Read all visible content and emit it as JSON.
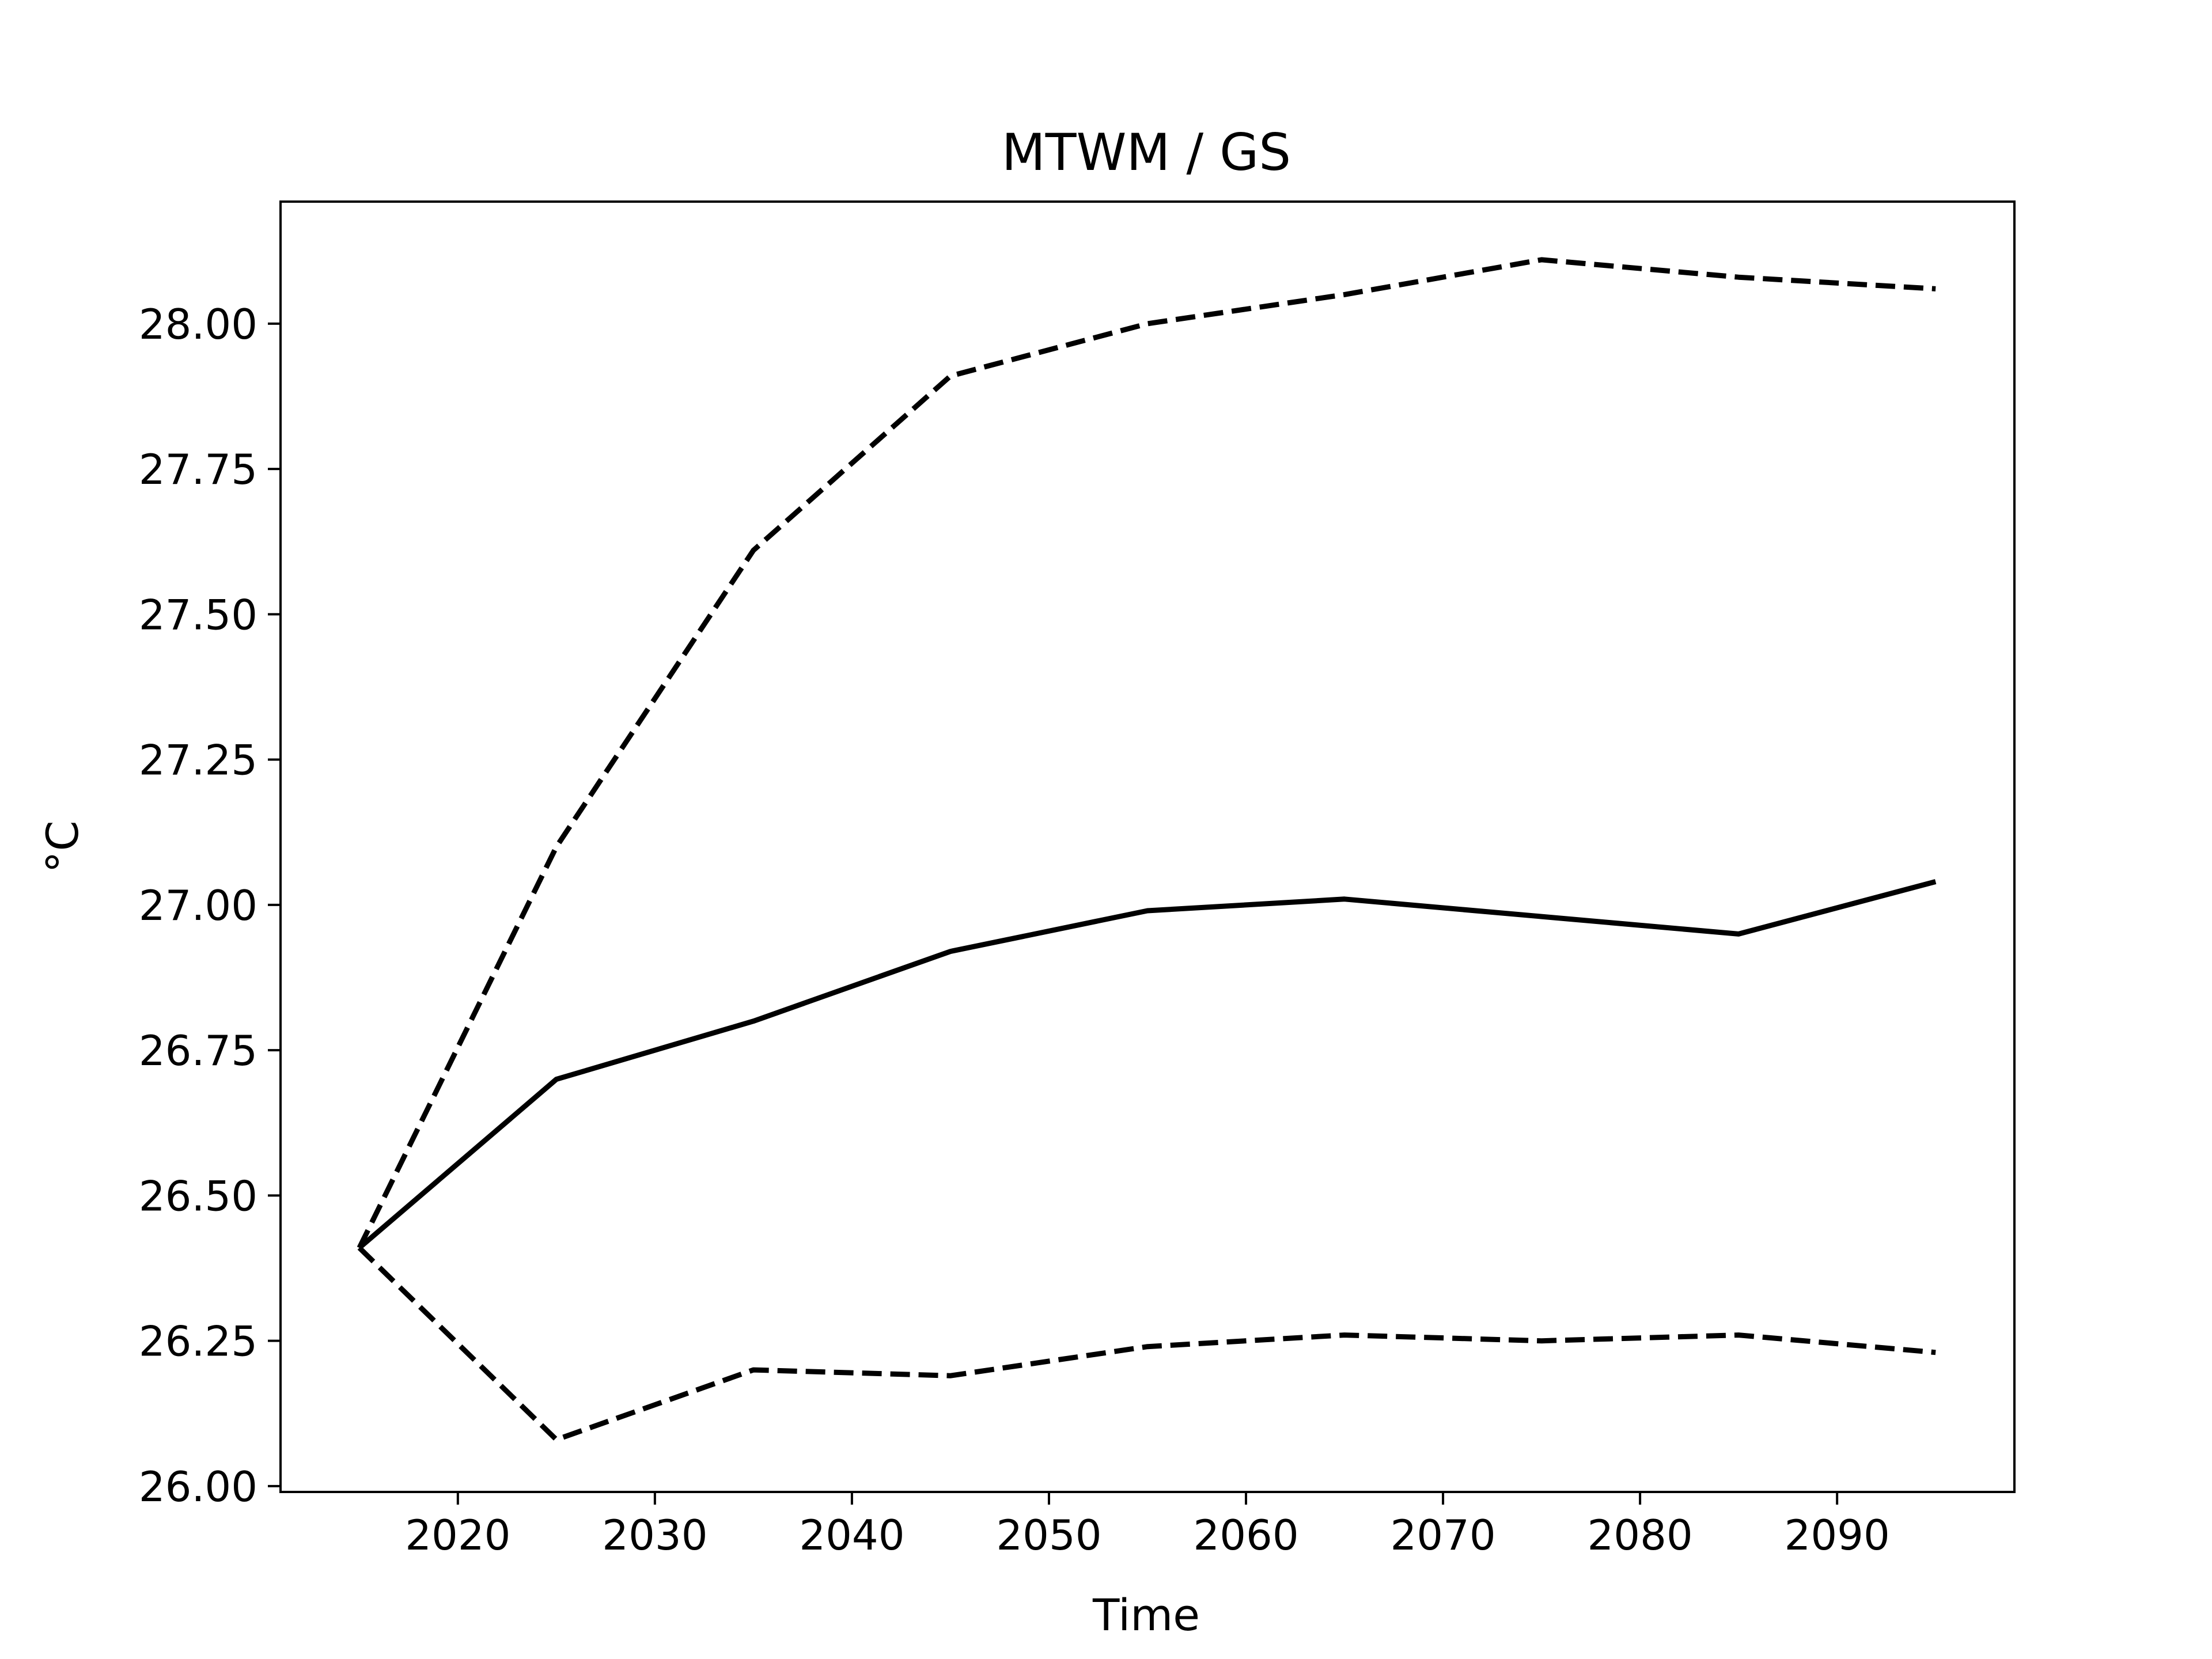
{
  "chart_data": {
    "type": "line",
    "title": "MTWM / GS",
    "xlabel": "Time",
    "ylabel": "°C",
    "xlim": [
      2011,
      2099
    ],
    "ylim": [
      25.99,
      28.21
    ],
    "xticks": [
      2020,
      2030,
      2040,
      2050,
      2060,
      2070,
      2080,
      2090
    ],
    "yticks": [
      26.0,
      26.25,
      26.5,
      26.75,
      27.0,
      27.25,
      27.5,
      27.75,
      28.0
    ],
    "ytick_labels": [
      "26.00",
      "26.25",
      "26.50",
      "26.75",
      "27.00",
      "27.25",
      "27.50",
      "27.75",
      "28.00"
    ],
    "grid": false,
    "legend": "none",
    "x": [
      2015,
      2025,
      2035,
      2045,
      2055,
      2065,
      2075,
      2085,
      2095
    ],
    "series": [
      {
        "style": "dashed",
        "color": "#000000",
        "values": [
          26.41,
          27.1,
          27.61,
          27.91,
          28.0,
          28.05,
          28.11,
          28.08,
          28.06
        ]
      },
      {
        "style": "solid",
        "color": "#000000",
        "values": [
          26.41,
          26.7,
          26.8,
          26.92,
          26.99,
          27.01,
          26.98,
          26.95,
          27.04
        ]
      },
      {
        "style": "dashed",
        "color": "#000000",
        "values": [
          26.41,
          26.08,
          26.2,
          26.19,
          26.24,
          26.26,
          26.25,
          26.26,
          26.23
        ]
      }
    ]
  }
}
